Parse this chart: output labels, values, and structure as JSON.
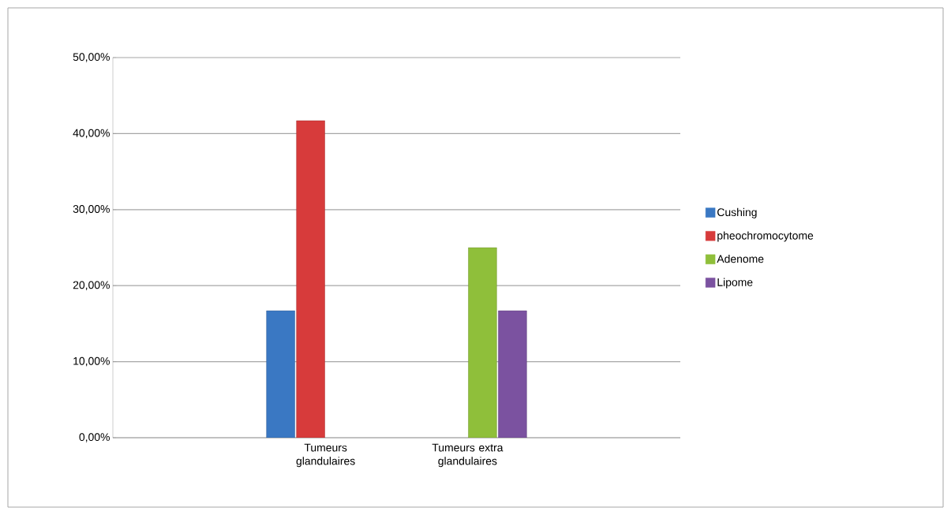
{
  "chart_data": {
    "type": "bar",
    "categories": [
      null,
      "Tumeurs glandulaires",
      "Tumeurs extra glandulaires",
      null
    ],
    "series": [
      {
        "name": "Cushing",
        "color": "#3a78c3",
        "values": [
          null,
          16.7,
          null,
          null
        ]
      },
      {
        "name": "pheochromocytome",
        "color": "#d73b3b",
        "values": [
          null,
          41.7,
          null,
          null
        ]
      },
      {
        "name": "Adenome",
        "color": "#8fbf3a",
        "values": [
          null,
          null,
          25,
          null
        ]
      },
      {
        "name": "Lipome",
        "color": "#7b52a0",
        "values": [
          null,
          null,
          16.7,
          null
        ]
      }
    ],
    "ylim": [
      0,
      50
    ],
    "yticks": [
      {
        "value": 0,
        "label": "0,00%"
      },
      {
        "value": 10,
        "label": "10,00%"
      },
      {
        "value": 20,
        "label": "20,00%"
      },
      {
        "value": 30,
        "label": "30,00%"
      },
      {
        "value": 40,
        "label": "40,00%"
      },
      {
        "value": 50,
        "label": "50,00%"
      }
    ],
    "grid": "y",
    "legend": "right"
  }
}
